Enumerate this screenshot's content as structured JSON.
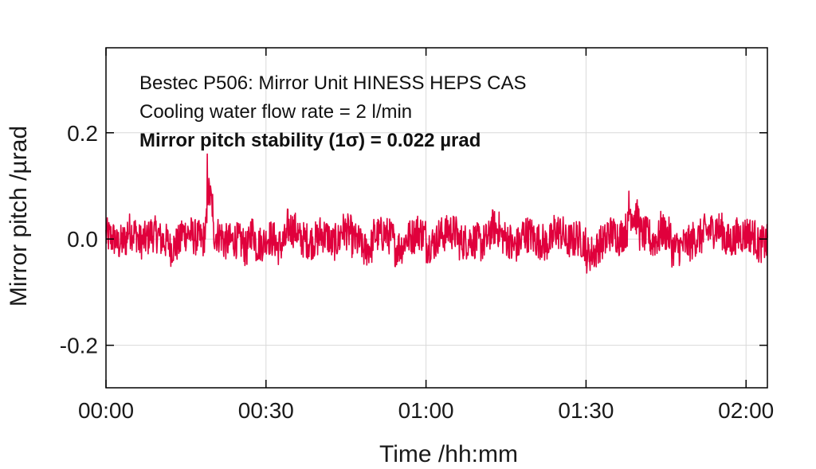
{
  "chart_data": {
    "type": "line",
    "xlabel": "Time /hh:mm",
    "ylabel": "Mirror pitch /µrad",
    "x_unit": "hh:mm",
    "xlim": [
      "00:00",
      "02:04"
    ],
    "ylim": [
      -0.28,
      0.36
    ],
    "x_ticks": [
      "00:00",
      "00:30",
      "01:00",
      "01:30",
      "02:00"
    ],
    "y_ticks": [
      {
        "value": 0.2,
        "label": "0.2"
      },
      {
        "value": 0.0,
        "label": "0.0"
      },
      {
        "value": -0.2,
        "label": "-0.2"
      }
    ],
    "grid": true,
    "legend": "none",
    "annotations": [
      {
        "text": "Bestec P506: Mirror Unit HINESS HEPS CAS",
        "bold": false
      },
      {
        "text": "Cooling water flow rate = 2 l/min",
        "bold": false
      },
      {
        "text": "Mirror pitch stability (1σ) = 0.022 µrad",
        "bold": true
      }
    ],
    "series": [
      {
        "color": "#e0003c",
        "x": [
          "00:00",
          "00:02",
          "00:04",
          "00:06",
          "00:08",
          "00:10",
          "00:12",
          "00:14",
          "00:16",
          "00:18",
          "00:19",
          "00:20",
          "00:22",
          "00:24",
          "00:26",
          "00:27",
          "00:28",
          "00:30",
          "00:32",
          "00:34",
          "00:36",
          "00:38",
          "00:40",
          "00:42",
          "00:44",
          "00:46",
          "00:48",
          "00:50",
          "00:52",
          "00:54",
          "00:56",
          "00:58",
          "01:00",
          "01:02",
          "01:04",
          "01:06",
          "01:08",
          "01:10",
          "01:12",
          "01:14",
          "01:16",
          "01:18",
          "01:20",
          "01:22",
          "01:24",
          "01:26",
          "01:28",
          "01:30",
          "01:32",
          "01:34",
          "01:36",
          "01:38",
          "01:40",
          "01:42",
          "01:44",
          "01:46",
          "01:48",
          "01:50",
          "01:52",
          "01:54",
          "01:56",
          "01:58",
          "02:00",
          "02:02",
          "02:04"
        ],
        "y": [
          0.01,
          -0.02,
          0.03,
          -0.01,
          0.02,
          0.0,
          -0.03,
          0.02,
          0.01,
          -0.02,
          0.16,
          0.02,
          -0.01,
          0.0,
          -0.04,
          0.03,
          -0.02,
          0.01,
          -0.03,
          0.04,
          0.0,
          -0.01,
          0.02,
          -0.02,
          0.03,
          0.0,
          -0.04,
          0.01,
          0.02,
          -0.03,
          0.0,
          0.03,
          -0.02,
          0.01,
          0.03,
          -0.01,
          0.0,
          -0.02,
          0.04,
          0.01,
          -0.03,
          0.02,
          0.0,
          -0.02,
          0.03,
          -0.01,
          0.01,
          -0.05,
          -0.02,
          0.02,
          0.0,
          0.09,
          0.02,
          -0.01,
          0.03,
          -0.03,
          -0.02,
          0.0,
          0.02,
          0.04,
          -0.01,
          0.01,
          0.02,
          -0.02,
          0.0
        ],
        "noise_amplitude": 0.035
      }
    ]
  }
}
